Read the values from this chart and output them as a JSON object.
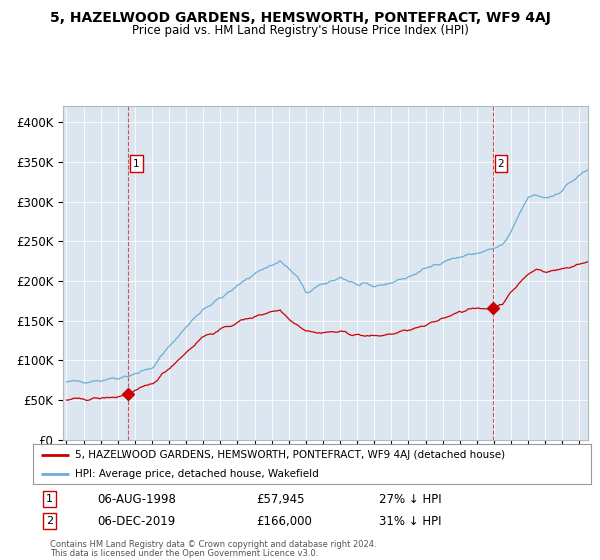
{
  "title": "5, HAZELWOOD GARDENS, HEMSWORTH, PONTEFRACT, WF9 4AJ",
  "subtitle": "Price paid vs. HM Land Registry's House Price Index (HPI)",
  "legend_line1": "5, HAZELWOOD GARDENS, HEMSWORTH, PONTEFRACT, WF9 4AJ (detached house)",
  "legend_line2": "HPI: Average price, detached house, Wakefield",
  "annotation1_label": "1",
  "annotation1_date": "06-AUG-1998",
  "annotation1_price": "£57,945",
  "annotation1_hpi": "27% ↓ HPI",
  "annotation2_label": "2",
  "annotation2_date": "06-DEC-2019",
  "annotation2_price": "£166,000",
  "annotation2_hpi": "31% ↓ HPI",
  "footnote1": "Contains HM Land Registry data © Crown copyright and database right 2024.",
  "footnote2": "This data is licensed under the Open Government Licence v3.0.",
  "red_color": "#cc0000",
  "blue_color": "#6baed6",
  "bg_color": "#dce6f1",
  "marker1_x": 1998.59,
  "marker1_y": 57945,
  "marker2_x": 2019.92,
  "marker2_y": 166000,
  "vline1_x": 1998.59,
  "vline2_x": 2019.92,
  "ylim": [
    0,
    420000
  ],
  "xlim_start": 1994.8,
  "xlim_end": 2025.5
}
